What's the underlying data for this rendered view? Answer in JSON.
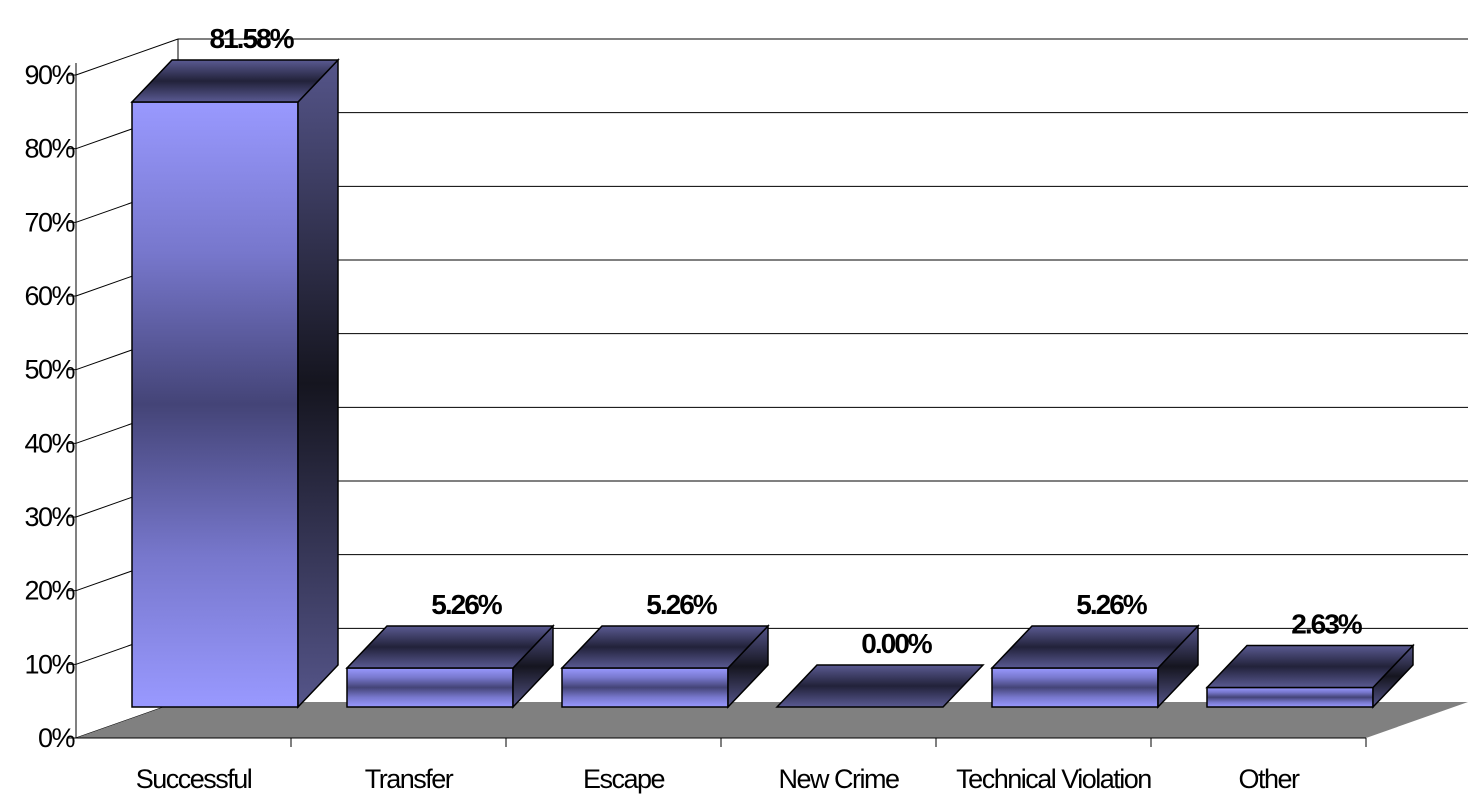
{
  "chart_data": {
    "type": "bar",
    "categories": [
      "Successful",
      "Transfer",
      "Escape",
      "New Crime",
      "Technical Violation",
      "Other"
    ],
    "values": [
      81.58,
      5.26,
      5.26,
      0.0,
      5.26,
      2.63
    ],
    "data_labels": [
      "81.58%",
      "5.26%",
      "5.26%",
      "0.00%",
      "5.26%",
      "2.63%"
    ],
    "ylim": [
      0,
      90
    ],
    "yticks": [
      0,
      10,
      20,
      30,
      40,
      50,
      60,
      70,
      80,
      90
    ],
    "ytick_labels": [
      "0%",
      "10%",
      "20%",
      "30%",
      "40%",
      "50%",
      "60%",
      "70%",
      "80%",
      "90%"
    ],
    "title": "",
    "xlabel": "",
    "ylabel": "",
    "grid": true,
    "legend": "none",
    "style": "3d-column",
    "colors": {
      "bar_light": "#9999ff",
      "bar_dark": "#1a1a2e",
      "floor": "#808080"
    }
  }
}
